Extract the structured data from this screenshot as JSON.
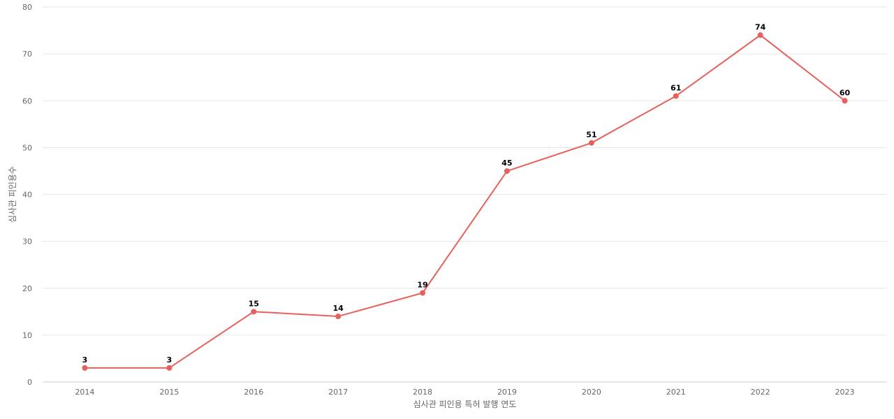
{
  "chart_data": {
    "type": "line",
    "title": "",
    "xlabel": "심사관 피인용 특허 발행 연도",
    "ylabel": "심사관 피인용수",
    "categories": [
      "2014",
      "2015",
      "2016",
      "2017",
      "2018",
      "2019",
      "2020",
      "2021",
      "2022",
      "2023"
    ],
    "series": [
      {
        "values": [
          3,
          3,
          15,
          14,
          19,
          45,
          51,
          61,
          74,
          60
        ],
        "color": "#e8605c"
      }
    ],
    "ylim": [
      0,
      80
    ],
    "yticks": [
      0,
      10,
      20,
      30,
      40,
      50,
      60,
      70,
      80
    ],
    "grid": true,
    "legend": "none",
    "data_labels": true
  }
}
